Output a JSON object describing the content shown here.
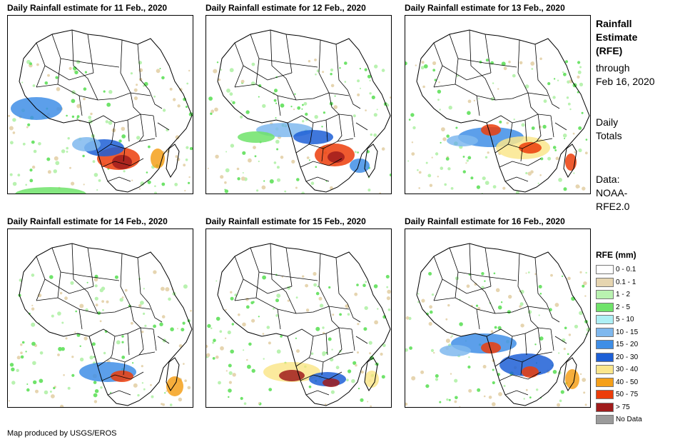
{
  "panels": [
    {
      "title": "Daily Rainfall estimate for 11 Feb., 2020",
      "intensity": "high-south"
    },
    {
      "title": "Daily Rainfall estimate for 12 Feb., 2020",
      "intensity": "east"
    },
    {
      "title": "Daily Rainfall estimate for 13 Feb., 2020",
      "intensity": "central"
    },
    {
      "title": "Daily Rainfall estimate for 14 Feb., 2020",
      "intensity": "south-central"
    },
    {
      "title": "Daily Rainfall estimate for 15 Feb., 2020",
      "intensity": "angola"
    },
    {
      "title": "Daily Rainfall estimate for 16 Feb., 2020",
      "intensity": "central-west"
    }
  ],
  "side": {
    "title_line1": "Rainfall",
    "title_line2": "Estimate",
    "title_line3": "(RFE)",
    "through_line1": "through",
    "through_line2": "Feb 16, 2020",
    "daily_line1": "Daily",
    "daily_line2": "Totals",
    "data_line1": "Data:",
    "data_line2": "NOAA-",
    "data_line3": "RFE2.0"
  },
  "legend": {
    "title": "RFE (mm)",
    "items": [
      {
        "label": "0 - 0.1",
        "color": "#ffffff"
      },
      {
        "label": "0.1 - 1",
        "color": "#e6d5b0"
      },
      {
        "label": "1 - 2",
        "color": "#b9f2b0"
      },
      {
        "label": "2 - 5",
        "color": "#6fe36a"
      },
      {
        "label": "5 - 10",
        "color": "#aef0f5"
      },
      {
        "label": "10 - 15",
        "color": "#7fb8ee"
      },
      {
        "label": "15 - 20",
        "color": "#3f8ee6"
      },
      {
        "label": "20 - 30",
        "color": "#1d5fd6"
      },
      {
        "label": "30 - 40",
        "color": "#fae68c"
      },
      {
        "label": "40 - 50",
        "color": "#f5a01a"
      },
      {
        "label": "50 - 75",
        "color": "#ec3d0a"
      },
      {
        "label": "> 75",
        "color": "#a01c1c"
      },
      {
        "label": "No Data",
        "color": "#9b9b9b"
      }
    ]
  },
  "credit": "Map produced by USGS/EROS"
}
